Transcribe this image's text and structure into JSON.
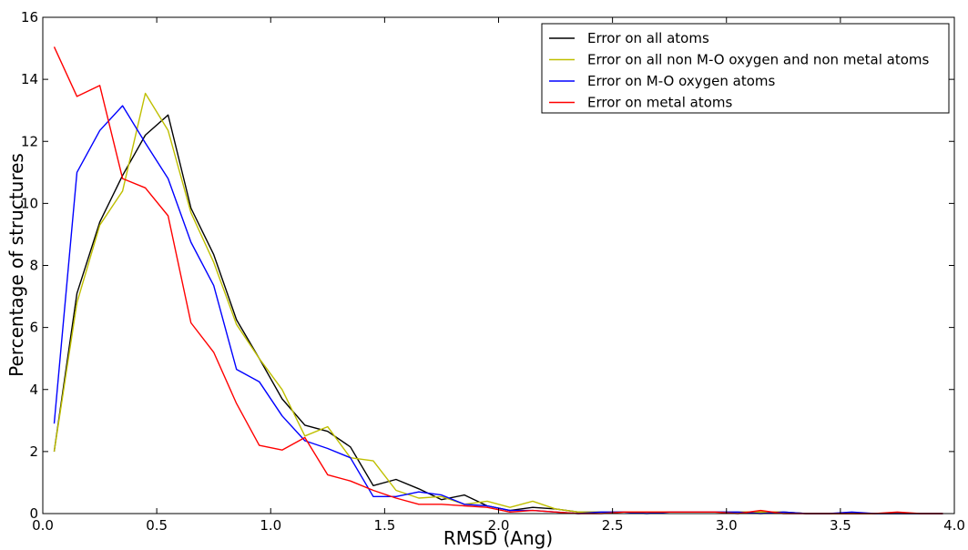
{
  "chart_data": {
    "type": "line",
    "title": "",
    "xlabel": "RMSD (Ang)",
    "ylabel": "Percentage of structures",
    "xlim": [
      0.0,
      4.0
    ],
    "ylim": [
      0,
      16
    ],
    "grid": false,
    "legend_position": "top-right",
    "x_ticks": [
      "0.0",
      "0.5",
      "1.0",
      "1.5",
      "2.0",
      "2.5",
      "3.0",
      "3.5",
      "4.0"
    ],
    "y_ticks": [
      "0",
      "2",
      "4",
      "6",
      "8",
      "10",
      "12",
      "14",
      "16"
    ],
    "x": [
      0.05,
      0.15,
      0.25,
      0.35,
      0.45,
      0.55,
      0.65,
      0.75,
      0.85,
      0.95,
      1.05,
      1.15,
      1.25,
      1.35,
      1.45,
      1.55,
      1.65,
      1.75,
      1.85,
      1.95,
      2.05,
      2.15,
      2.25,
      2.35,
      2.45,
      2.55,
      2.65,
      2.75,
      2.85,
      2.95,
      3.05,
      3.15,
      3.25,
      3.35,
      3.45,
      3.55,
      3.65,
      3.75,
      3.85,
      3.95
    ],
    "series": [
      {
        "name": "Error on all atoms",
        "color": "#000000",
        "values": [
          2.0,
          7.1,
          9.4,
          10.9,
          12.2,
          12.85,
          9.85,
          8.35,
          6.25,
          5.0,
          3.7,
          2.85,
          2.65,
          2.15,
          0.9,
          1.1,
          0.8,
          0.45,
          0.6,
          0.25,
          0.1,
          0.2,
          0.15,
          0.05,
          0.05,
          0.05,
          0.05,
          0.05,
          0.05,
          0.05,
          0.05,
          0.05,
          0.05,
          0.0,
          0.0,
          0.0,
          0.0,
          0.0,
          0.0,
          0.0
        ]
      },
      {
        "name": "Error on all non M-O oxygen and non metal atoms",
        "color": "#bfbf00",
        "values": [
          2.0,
          6.8,
          9.3,
          10.4,
          13.55,
          12.35,
          9.7,
          8.1,
          6.1,
          5.0,
          4.0,
          2.5,
          2.8,
          1.8,
          1.7,
          0.75,
          0.5,
          0.55,
          0.3,
          0.4,
          0.2,
          0.4,
          0.15,
          0.05,
          0.05,
          0.05,
          0.05,
          0.05,
          0.05,
          0.05,
          0.05,
          0.05,
          0.05,
          0.0,
          0.0,
          0.0,
          0.0,
          0.0,
          0.0,
          0.0
        ]
      },
      {
        "name": "Error on M-O oxygen atoms",
        "color": "#0000ff",
        "values": [
          2.9,
          11.0,
          12.35,
          13.15,
          11.95,
          10.8,
          8.75,
          7.35,
          4.65,
          4.25,
          3.15,
          2.35,
          2.1,
          1.8,
          0.55,
          0.55,
          0.7,
          0.6,
          0.3,
          0.25,
          0.1,
          0.1,
          0.05,
          0.0,
          0.05,
          0.05,
          0.0,
          0.05,
          0.05,
          0.05,
          0.05,
          0.0,
          0.05,
          0.0,
          0.0,
          0.05,
          0.0,
          0.0,
          0.0,
          0.0
        ]
      },
      {
        "name": "Error on metal atoms",
        "color": "#ff0000",
        "values": [
          15.05,
          13.45,
          13.8,
          10.8,
          10.5,
          9.6,
          6.15,
          5.2,
          3.55,
          2.2,
          2.05,
          2.45,
          1.25,
          1.05,
          0.75,
          0.5,
          0.3,
          0.3,
          0.25,
          0.2,
          0.05,
          0.1,
          0.05,
          0.0,
          0.0,
          0.05,
          0.05,
          0.05,
          0.05,
          0.05,
          0.0,
          0.1,
          0.0,
          0.0,
          0.0,
          0.0,
          0.0,
          0.05,
          0.0,
          0.0
        ]
      }
    ]
  }
}
